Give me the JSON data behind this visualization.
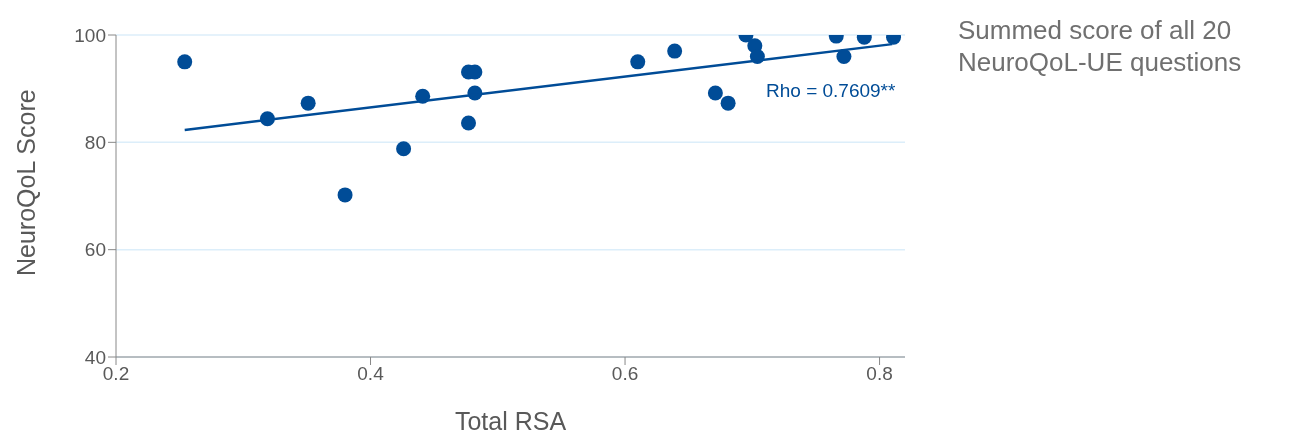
{
  "chart_data": {
    "type": "scatter",
    "xlabel": "Total RSA",
    "ylabel": "NeuroQoL Score",
    "xlim": [
      0.2,
      0.82
    ],
    "xticks": [
      0.2,
      0.4,
      0.6,
      0.8
    ],
    "ylim": [
      40,
      100
    ],
    "yticks": [
      40,
      60,
      80,
      100
    ],
    "grid": "y",
    "marker": "circle",
    "series": [
      {
        "color": "#004c97",
        "x": [
          0.254,
          0.319,
          0.351,
          0.38,
          0.426,
          0.441,
          0.477,
          0.482,
          0.477,
          0.482,
          0.61,
          0.639,
          0.671,
          0.681,
          0.695,
          0.702,
          0.704,
          0.766,
          0.772,
          0.788,
          0.811
        ],
        "values": [
          95,
          84.4,
          87.3,
          70.2,
          78.8,
          88.6,
          93.1,
          93.1,
          83.6,
          89.2,
          95,
          97,
          89.2,
          87.3,
          100,
          98,
          96,
          99.8,
          96,
          99.6,
          99.6
        ]
      },
      {
        "type": "line",
        "color": "#004c97",
        "marker": "none",
        "x": [
          0.254,
          0.81
        ],
        "values": [
          82.3,
          98.3
        ]
      }
    ],
    "annotations": [
      "Rho = 0.7609**",
      "Summed score of all 20 NeuroQoL-UE questions"
    ]
  }
}
